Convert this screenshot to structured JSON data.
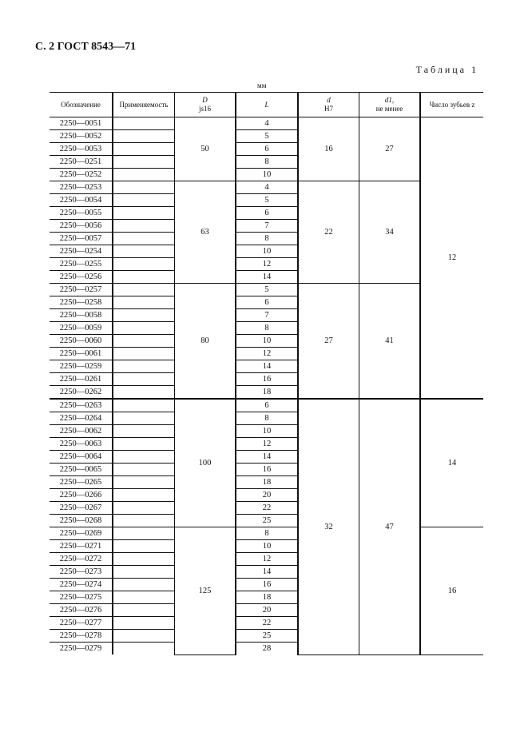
{
  "page_header": "С. 2 ГОСТ 8543—71",
  "table_label": "Таблица 1",
  "unit": "мм",
  "columns": {
    "designation": "Обозначение",
    "applicability": "Применяемость",
    "D": "D",
    "D_tol": "js16",
    "L": "L",
    "d": "d",
    "d_tol": "H7",
    "d1": "d1,",
    "d1_note": "не менее",
    "z": "Число зубьев z"
  },
  "rows": [
    {
      "code": "2250—0051",
      "L": "4"
    },
    {
      "code": "2250—0052",
      "L": "5"
    },
    {
      "code": "2250—0053",
      "L": "6"
    },
    {
      "code": "2250—0251",
      "L": "8"
    },
    {
      "code": "2250—0252",
      "L": "10"
    },
    {
      "code": "2250—0253",
      "L": "4"
    },
    {
      "code": "2250—0054",
      "L": "5"
    },
    {
      "code": "2250—0055",
      "L": "6"
    },
    {
      "code": "2250—0056",
      "L": "7"
    },
    {
      "code": "2250—0057",
      "L": "8"
    },
    {
      "code": "2250—0254",
      "L": "10"
    },
    {
      "code": "2250—0255",
      "L": "12"
    },
    {
      "code": "2250—0256",
      "L": "14"
    },
    {
      "code": "2250—0257",
      "L": "5"
    },
    {
      "code": "2250—0258",
      "L": "6"
    },
    {
      "code": "2250—0058",
      "L": "7"
    },
    {
      "code": "2250—0059",
      "L": "8"
    },
    {
      "code": "2250—0060",
      "L": "10"
    },
    {
      "code": "2250—0061",
      "L": "12"
    },
    {
      "code": "2250—0259",
      "L": "14"
    },
    {
      "code": "2250—0261",
      "L": "16"
    },
    {
      "code": "2250—0262",
      "L": "18"
    },
    {
      "code": "2250—0263",
      "L": "6"
    },
    {
      "code": "2250—0264",
      "L": "8"
    },
    {
      "code": "2250—0062",
      "L": "10"
    },
    {
      "code": "2250—0063",
      "L": "12"
    },
    {
      "code": "2250—0064",
      "L": "14"
    },
    {
      "code": "2250—0065",
      "L": "16"
    },
    {
      "code": "2250—0265",
      "L": "18"
    },
    {
      "code": "2250—0266",
      "L": "20"
    },
    {
      "code": "2250—0267",
      "L": "22"
    },
    {
      "code": "2250—0268",
      "L": "25"
    },
    {
      "code": "2250—0269",
      "L": "8"
    },
    {
      "code": "2250—0271",
      "L": "10"
    },
    {
      "code": "2250—0272",
      "L": "12"
    },
    {
      "code": "2250—0273",
      "L": "14"
    },
    {
      "code": "2250—0274",
      "L": "16"
    },
    {
      "code": "2250—0275",
      "L": "18"
    },
    {
      "code": "2250—0276",
      "L": "20"
    },
    {
      "code": "2250—0277",
      "L": "22"
    },
    {
      "code": "2250—0278",
      "L": "25"
    },
    {
      "code": "2250—0279",
      "L": "28"
    }
  ],
  "D_groups": [
    {
      "value": "50",
      "span": 5
    },
    {
      "value": "63",
      "span": 8
    },
    {
      "value": "80",
      "span": 9
    },
    {
      "value": "100",
      "span": 10
    },
    {
      "value": "125",
      "span": 10
    }
  ],
  "d_groups": [
    {
      "d": "16",
      "d1": "27",
      "span": 5
    },
    {
      "d": "22",
      "d1": "34",
      "span": 8
    },
    {
      "d": "27",
      "d1": "41",
      "span": 9
    },
    {
      "d": "32",
      "d1": "47",
      "span": 20
    }
  ],
  "z_groups": [
    {
      "value": "12",
      "span": 22
    },
    {
      "value": "14",
      "span": 10
    },
    {
      "value": "16",
      "span": 10
    }
  ]
}
